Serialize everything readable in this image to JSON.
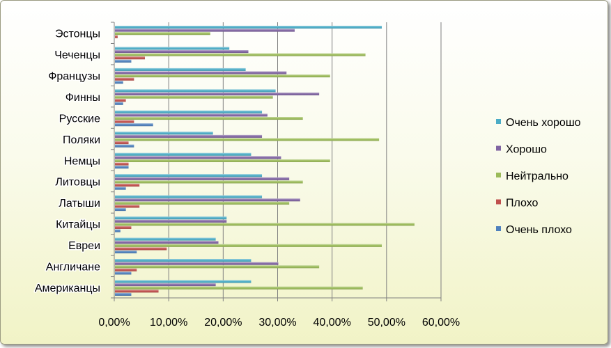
{
  "chart_data": {
    "type": "bar",
    "orientation": "horizontal",
    "categories": [
      "Эстонцы",
      "Чеченцы",
      "Французы",
      "Финны",
      "Русские",
      "Поляки",
      "Немцы",
      "Литовцы",
      "Латыши",
      "Китайцы",
      "Евреи",
      "Англичане",
      "Американцы"
    ],
    "series": [
      {
        "name": "Очень хорошо",
        "color": "#4BACC6",
        "values": [
          49.0,
          21.0,
          24.0,
          29.5,
          27.0,
          18.0,
          25.0,
          27.0,
          27.0,
          20.5,
          18.5,
          25.0,
          25.0
        ]
      },
      {
        "name": "Хорошо",
        "color": "#8064A2",
        "values": [
          33.0,
          24.5,
          31.5,
          37.5,
          28.0,
          27.0,
          30.5,
          32.0,
          34.0,
          20.5,
          19.0,
          30.0,
          18.5
        ]
      },
      {
        "name": "Нейтрально",
        "color": "#9BBB59",
        "values": [
          17.5,
          46.0,
          39.5,
          29.0,
          34.5,
          48.5,
          39.5,
          34.5,
          32.0,
          55.0,
          49.0,
          37.5,
          45.5
        ]
      },
      {
        "name": "Плохо",
        "color": "#C0504D",
        "values": [
          0.5,
          5.5,
          3.5,
          2.0,
          3.5,
          2.5,
          2.5,
          4.5,
          4.5,
          3.0,
          9.5,
          4.0,
          8.0
        ]
      },
      {
        "name": "Очень плохо",
        "color": "#4F81BD",
        "values": [
          0.0,
          3.0,
          1.5,
          1.5,
          7.0,
          3.5,
          2.5,
          2.0,
          2.0,
          1.0,
          4.0,
          3.0,
          3.0
        ]
      }
    ],
    "xlim": [
      0,
      60
    ],
    "xticks": [
      "0,00%",
      "10,00%",
      "20,00%",
      "30,00%",
      "40,00%",
      "50,00%",
      "60,00%"
    ],
    "grid": true,
    "legend_position": "right"
  }
}
